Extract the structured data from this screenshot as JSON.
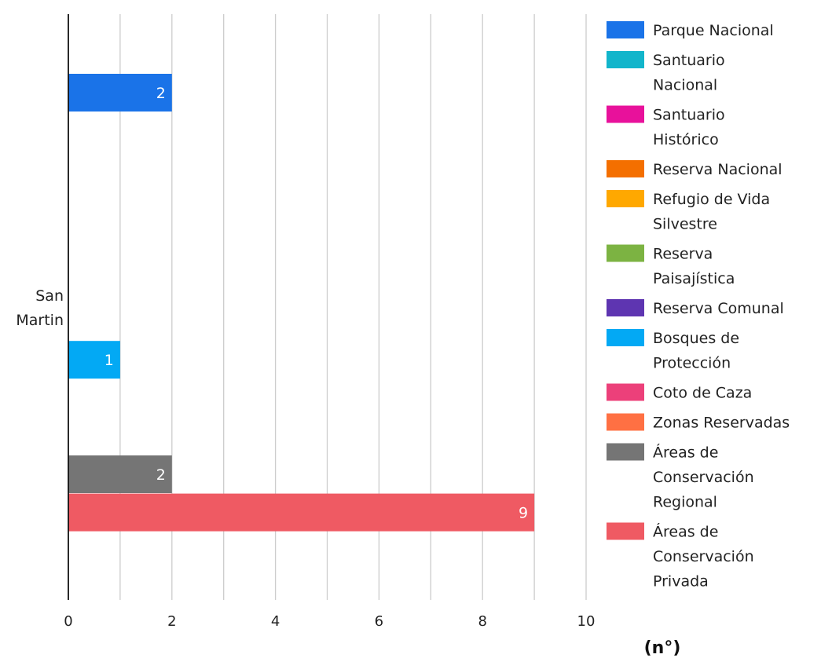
{
  "chart_data": {
    "type": "bar",
    "orientation": "horizontal",
    "categories": [
      "San Martin"
    ],
    "xlim": [
      0,
      10
    ],
    "x_ticks": [
      0,
      2,
      4,
      6,
      8,
      10
    ],
    "unit_label": "(n°)",
    "grid": true,
    "legend_position": "right",
    "series": [
      {
        "name": "Parque Nacional",
        "values": [
          2
        ],
        "color": "#1a73e8"
      },
      {
        "name": "Santuario Nacional",
        "values": [
          0
        ],
        "color": "#12b5cb"
      },
      {
        "name": "Santuario Histórico",
        "values": [
          0
        ],
        "color": "#e8119b"
      },
      {
        "name": "Reserva Nacional",
        "values": [
          0
        ],
        "color": "#f46f00"
      },
      {
        "name": "Refugio de Vida Silvestre",
        "values": [
          0
        ],
        "color": "#ffa800"
      },
      {
        "name": "Reserva Paisajística",
        "values": [
          0
        ],
        "color": "#7cb342"
      },
      {
        "name": "Reserva Comunal",
        "values": [
          0
        ],
        "color": "#5e35b1"
      },
      {
        "name": "Bosques de Protección",
        "values": [
          1
        ],
        "color": "#03a9f4"
      },
      {
        "name": "Coto de Caza",
        "values": [
          0
        ],
        "color": "#ec407a"
      },
      {
        "name": "Zonas Reservadas",
        "values": [
          0
        ],
        "color": "#ff7043"
      },
      {
        "name": "Áreas de Conservación Regional",
        "values": [
          2
        ],
        "color": "#757575"
      },
      {
        "name": "Áreas de Conservación Privada",
        "values": [
          9
        ],
        "color": "#ef5a63"
      }
    ]
  }
}
